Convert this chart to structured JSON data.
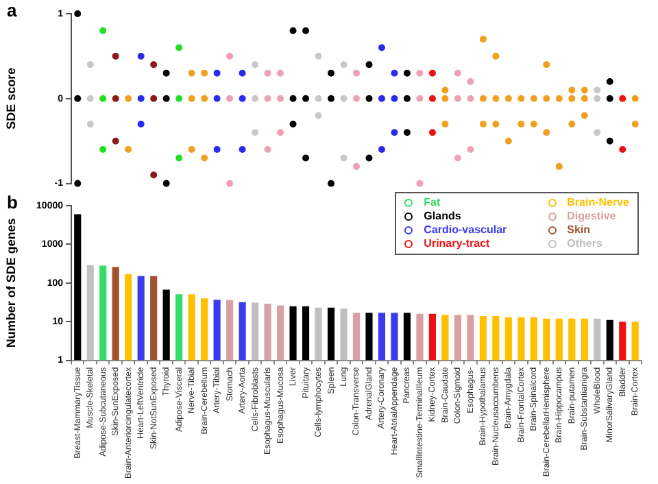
{
  "chart_data": [
    {
      "type": "scatter",
      "title": "a",
      "ylabel": "SDE score",
      "ylim": [
        -1,
        1
      ],
      "yticks": [
        -1,
        0,
        1
      ],
      "tick_labels": "y",
      "grid": false,
      "legend": false,
      "marker": "circle",
      "categories": [
        "Breast-MammaryTissue",
        "Muscle-Skeletal",
        "Adipose-Subcutaneous",
        "Skin-SunExposed",
        "Brain-Anteriorcingulatecortex",
        "Heart-LeftVentricle",
        "Skin-NotSunExposed",
        "Thyroid",
        "Adipose-Visceral",
        "Nerve-Tibial",
        "Brain-Cerebellum",
        "Artery-Tibial",
        "Stomach",
        "Artery-Aorta",
        "Cells-Fibroblasts",
        "Esophagus-Muscularis",
        "Esophagus-Mucosa",
        "Liver",
        "Pituitary",
        "Cells-lymphocytes",
        "Spleen",
        "Lung",
        "Colon-Transverse",
        "AdrenalGland",
        "Artery-Coronary",
        "Heart-AtrialAppendage",
        "Pancreas",
        "SmallIntestine-TerminalIleum",
        "Kidney-Cortex",
        "Brain-Caudate",
        "Colon-Sigmoid",
        "Esophagus-",
        "Brain-Hypothalamus",
        "Brain-Nucleusaccumbens",
        "Brain-Amygdala",
        "Brain-FrontalCortex",
        "Brain-Spinalcord",
        "Brain-CerebellarHemisphere",
        "Brain-Hippocampus",
        "Brain-putamen",
        "Brain-Substantianigra",
        "WholeBlood",
        "MinorSalivaryGland",
        "Bladder",
        "Brain-Cortex"
      ],
      "series": [
        {
          "color": "#000000",
          "x": [
            "Breast-MammaryTissue",
            "Breast-MammaryTissue",
            "Breast-MammaryTissue",
            "Thyroid",
            "Thyroid",
            "Thyroid",
            "Liver",
            "Liver",
            "Liver",
            "Pituitary",
            "Pituitary",
            "Pituitary",
            "Spleen",
            "Spleen",
            "Spleen",
            "AdrenalGland",
            "AdrenalGland",
            "AdrenalGland",
            "Pancreas",
            "Pancreas",
            "Pancreas",
            "MinorSalivaryGland",
            "MinorSalivaryGland",
            "MinorSalivaryGland"
          ],
          "values": [
            1.0,
            0,
            -1.0,
            0.3,
            0,
            -1.0,
            0.8,
            0,
            -0.3,
            0.8,
            0,
            -0.7,
            0.3,
            0,
            -1.0,
            0.4,
            0,
            -0.7,
            0.3,
            0,
            -0.4,
            0.2,
            0,
            -0.5
          ]
        },
        {
          "color": "#c8c8c8",
          "x": [
            "Muscle-Skeletal",
            "Muscle-Skeletal",
            "Muscle-Skeletal",
            "Cells-Fibroblasts",
            "Cells-Fibroblasts",
            "Cells-Fibroblasts",
            "Cells-lymphocytes",
            "Cells-lymphocytes",
            "Cells-lymphocytes",
            "Lung",
            "Lung",
            "Lung",
            "WholeBlood",
            "WholeBlood",
            "WholeBlood"
          ],
          "values": [
            0.4,
            0,
            -0.3,
            0.4,
            0,
            -0.4,
            0.5,
            0,
            -0.2,
            0.4,
            0,
            -0.7,
            0.1,
            0,
            -0.4
          ]
        },
        {
          "color": "#22dd22",
          "x": [
            "Adipose-Subcutaneous",
            "Adipose-Subcutaneous",
            "Adipose-Subcutaneous",
            "Adipose-Visceral",
            "Adipose-Visceral",
            "Adipose-Visceral"
          ],
          "values": [
            0.8,
            0,
            -0.6,
            0.6,
            0,
            -0.7
          ]
        },
        {
          "color": "#8b1a1a",
          "x": [
            "Skin-SunExposed",
            "Skin-SunExposed",
            "Skin-SunExposed",
            "Skin-NotSunExposed",
            "Skin-NotSunExposed",
            "Skin-NotSunExposed"
          ],
          "values": [
            0.5,
            0,
            -0.5,
            0.4,
            0,
            -0.9
          ]
        },
        {
          "color": "#f0a020",
          "x": [
            "Brain-Anteriorcingulatecortex",
            "Brain-Anteriorcingulatecortex",
            "Nerve-Tibial",
            "Nerve-Tibial",
            "Nerve-Tibial",
            "Brain-Cerebellum",
            "Brain-Cerebellum",
            "Brain-Cerebellum",
            "Brain-Caudate",
            "Brain-Caudate",
            "Brain-Caudate",
            "Brain-Hypothalamus",
            "Brain-Hypothalamus",
            "Brain-Hypothalamus",
            "Brain-Nucleusaccumbens",
            "Brain-Nucleusaccumbens",
            "Brain-Nucleusaccumbens",
            "Brain-Amygdala",
            "Brain-Amygdala",
            "Brain-FrontalCortex",
            "Brain-FrontalCortex",
            "Brain-Spinalcord",
            "Brain-Spinalcord",
            "Brain-CerebellarHemisphere",
            "Brain-CerebellarHemisphere",
            "Brain-CerebellarHemisphere",
            "Brain-Hippocampus",
            "Brain-Hippocampus",
            "Brain-putamen",
            "Brain-putamen",
            "Brain-putamen",
            "Brain-Substantianigra",
            "Brain-Substantianigra",
            "Brain-Substantianigra",
            "Brain-Cortex",
            "Brain-Cortex"
          ],
          "values": [
            0,
            -0.6,
            0.3,
            0,
            -0.6,
            0.3,
            0,
            -0.7,
            0.1,
            0,
            -0.3,
            0.7,
            0,
            -0.3,
            0.5,
            0,
            -0.3,
            0,
            -0.5,
            0,
            -0.3,
            0,
            -0.3,
            0.4,
            0,
            -0.4,
            0,
            -0.8,
            0.1,
            0,
            -0.3,
            0.1,
            0,
            -0.2,
            0,
            -0.3
          ]
        },
        {
          "color": "#2a2aee",
          "x": [
            "Heart-LeftVentricle",
            "Heart-LeftVentricle",
            "Heart-LeftVentricle",
            "Artery-Tibial",
            "Artery-Tibial",
            "Artery-Tibial",
            "Artery-Aorta",
            "Artery-Aorta",
            "Artery-Aorta",
            "Artery-Coronary",
            "Artery-Coronary",
            "Artery-Coronary",
            "Heart-AtrialAppendage",
            "Heart-AtrialAppendage",
            "Heart-AtrialAppendage"
          ],
          "values": [
            0.5,
            0,
            -0.3,
            0.3,
            0,
            -0.6,
            0.3,
            0,
            -0.6,
            0.6,
            0,
            -0.6,
            0.3,
            0,
            -0.4
          ]
        },
        {
          "color": "#f0a0b4",
          "x": [
            "Stomach",
            "Stomach",
            "Stomach",
            "Esophagus-Muscularis",
            "Esophagus-Muscularis",
            "Esophagus-Muscularis",
            "Esophagus-Mucosa",
            "Esophagus-Mucosa",
            "Esophagus-Mucosa",
            "Colon-Transverse",
            "Colon-Transverse",
            "Colon-Transverse",
            "SmallIntestine-TerminalIleum",
            "SmallIntestine-TerminalIleum",
            "SmallIntestine-TerminalIleum",
            "Colon-Sigmoid",
            "Colon-Sigmoid",
            "Colon-Sigmoid",
            "Esophagus-",
            "Esophagus-",
            "Esophagus-"
          ],
          "values": [
            0.5,
            0,
            -1.0,
            0.3,
            0,
            -0.6,
            0.3,
            0,
            -0.4,
            0.3,
            0,
            -0.8,
            0.3,
            0,
            -1.0,
            0.3,
            0,
            -0.7,
            0.2,
            0,
            -0.6
          ]
        },
        {
          "color": "#ee1111",
          "x": [
            "Kidney-Cortex",
            "Kidney-Cortex",
            "Kidney-Cortex",
            "Bladder",
            "Bladder"
          ],
          "values": [
            0.3,
            0,
            -0.4,
            0,
            -0.6
          ]
        }
      ]
    },
    {
      "type": "bar",
      "title": "b",
      "ylabel": "Number of SDE genes",
      "log": true,
      "ylim": [
        1,
        10000
      ],
      "yticks": [
        1,
        10,
        100,
        1000,
        10000
      ],
      "grid": false,
      "legend": "top right",
      "categories": [
        "Breast-MammaryTissue",
        "Muscle-Skeletal",
        "Adipose-Subcutaneous",
        "Skin-SunExposed",
        "Brain-Anteriorcingulatecortex",
        "Heart-LeftVentricle",
        "Skin-NotSunExposed",
        "Thyroid",
        "Adipose-Visceral",
        "Nerve-Tibial",
        "Brain-Cerebellum",
        "Artery-Tibial",
        "Stomach",
        "Artery-Aorta",
        "Cells-Fibroblasts",
        "Esophagus-Muscularis",
        "Esophagus-Mucosa",
        "Liver",
        "Pituitary",
        "Cells-lymphocytes",
        "Spleen",
        "Lung",
        "Colon-Transverse",
        "AdrenalGland",
        "Artery-Coronary",
        "Heart-AtrialAppendage",
        "Pancreas",
        "SmallIntestine-TerminalIleum",
        "Kidney-Cortex",
        "Brain-Caudate",
        "Colon-Sigmoid",
        "Esophagus-",
        "Brain-Hypothalamus",
        "Brain-Nucleusaccumbens",
        "Brain-Amygdala",
        "Brain-FrontalCortex",
        "Brain-Spinalcord",
        "Brain-CerebellarHemisphere",
        "Brain-Hippocampus",
        "Brain-putamen",
        "Brain-Substantianigra",
        "WholeBlood",
        "MinorSalivaryGland",
        "Bladder",
        "Brain-Cortex"
      ],
      "series": [
        {
          "name": "Fat",
          "color": "#33dd66",
          "x": [
            "Adipose-Subcutaneous",
            "Adipose-Visceral"
          ],
          "values": [
            280,
            51
          ]
        },
        {
          "name": "Brain-Nerve",
          "color": "#ffc000",
          "x": [
            "Brain-Anteriorcingulatecortex",
            "Nerve-Tibial",
            "Brain-Cerebellum",
            "Brain-Caudate",
            "Brain-Hypothalamus",
            "Brain-Nucleusaccumbens",
            "Brain-Amygdala",
            "Brain-FrontalCortex",
            "Brain-Spinalcord",
            "Brain-CerebellarHemisphere",
            "Brain-Hippocampus",
            "Brain-putamen",
            "Brain-Substantianigra",
            "Brain-Cortex"
          ],
          "values": [
            170,
            51,
            40,
            15,
            14,
            14,
            13,
            13,
            13,
            12,
            12,
            12,
            12,
            10
          ]
        },
        {
          "name": "Glands",
          "color": "#000000",
          "x": [
            "Breast-MammaryTissue",
            "Thyroid",
            "Liver",
            "Pituitary",
            "Spleen",
            "AdrenalGland",
            "Pancreas",
            "MinorSalivaryGland"
          ],
          "values": [
            6000,
            67,
            25,
            25,
            23,
            17,
            17,
            11
          ]
        },
        {
          "name": "Digestive",
          "color": "#d8a0a0",
          "x": [
            "Stomach",
            "Esophagus-Muscularis",
            "Esophagus-Mucosa",
            "Colon-Transverse",
            "SmallIntestine-TerminalIleum",
            "Colon-Sigmoid",
            "Esophagus-"
          ],
          "values": [
            36,
            29,
            26,
            17,
            16,
            15,
            15
          ]
        },
        {
          "name": "Cardio-vascular",
          "color": "#3a3aef",
          "x": [
            "Heart-LeftVentricle",
            "Artery-Tibial",
            "Artery-Aorta",
            "Artery-Coronary",
            "Heart-AtrialAppendage"
          ],
          "values": [
            150,
            37,
            32,
            17,
            17
          ]
        },
        {
          "name": "Skin",
          "color": "#a0522d",
          "x": [
            "Skin-SunExposed",
            "Skin-NotSunExposed"
          ],
          "values": [
            260,
            150
          ]
        },
        {
          "name": "Urinary-tract",
          "color": "#ee1111",
          "x": [
            "Kidney-Cortex",
            "Bladder"
          ],
          "values": [
            16,
            10
          ]
        },
        {
          "name": "Others",
          "color": "#c0c0c0",
          "x": [
            "Muscle-Skeletal",
            "Cells-Fibroblasts",
            "Cells-lymphocytes",
            "Lung",
            "WholeBlood"
          ],
          "values": [
            290,
            31,
            23,
            22,
            12
          ]
        }
      ]
    }
  ]
}
